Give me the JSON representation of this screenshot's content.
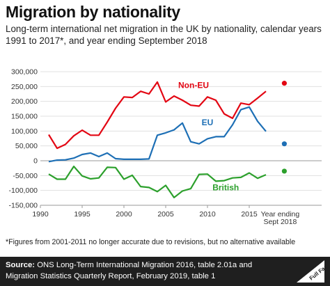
{
  "header": {
    "title": "Migration by nationality",
    "subtitle": "Long-term international net migration in the UK by nationality, calendar years 1991 to 2017*, and year ending September 2018"
  },
  "footnote": "*Figures from 2001-2011 no longer accurate due to revisions, but no alternative available",
  "source": {
    "label": "Source:",
    "text": "ONS Long-Term International Migration 2016, table 2.01a and Migration Statistics Quarterly Report, February 2019, table 1"
  },
  "logo": {
    "text": "Full Fact"
  },
  "colors": {
    "non_eu": "#e30613",
    "eu": "#1d6fb5",
    "british": "#2ca02c",
    "grid": "#e0e0e0",
    "source_bg": "#1f1f1f"
  },
  "chart_data": {
    "type": "line",
    "title": "Migration by nationality",
    "x": [
      1991,
      1992,
      1993,
      1994,
      1995,
      1996,
      1997,
      1998,
      1999,
      2000,
      2001,
      2002,
      2003,
      2004,
      2005,
      2006,
      2007,
      2008,
      2009,
      2010,
      2011,
      2012,
      2013,
      2014,
      2015,
      2016,
      2017
    ],
    "series": [
      {
        "name": "Non-EU",
        "color": "#e30613",
        "values": [
          88000,
          42000,
          55000,
          84000,
          103000,
          86000,
          86000,
          130000,
          177000,
          215000,
          213000,
          234000,
          225000,
          265000,
          198000,
          218000,
          204000,
          187000,
          184000,
          215000,
          204000,
          158000,
          143000,
          194000,
          189000,
          211000,
          234000
        ],
        "end_point": {
          "label": "Year ending Sept 2018",
          "value": 261000
        }
      },
      {
        "name": "EU",
        "color": "#1d6fb5",
        "values": [
          -3000,
          2000,
          3000,
          9000,
          21000,
          26000,
          14000,
          26000,
          7000,
          5000,
          5000,
          5000,
          6000,
          86000,
          94000,
          104000,
          127000,
          64000,
          57000,
          74000,
          81000,
          81000,
          121000,
          172000,
          181000,
          133000,
          99000
        ],
        "end_point": {
          "label": "Year ending Sept 2018",
          "value": 57000
        }
      },
      {
        "name": "British",
        "color": "#2ca02c",
        "values": [
          -45000,
          -62000,
          -62000,
          -19000,
          -51000,
          -61000,
          -58000,
          -22000,
          -23000,
          -62000,
          -49000,
          -87000,
          -90000,
          -104000,
          -83000,
          -124000,
          -102000,
          -94000,
          -46000,
          -45000,
          -69000,
          -67000,
          -58000,
          -56000,
          -41000,
          -59000,
          -47000
        ],
        "end_point": {
          "label": "Year ending Sept 2018",
          "value": -35000
        }
      }
    ],
    "x_ticks": [
      1990,
      1995,
      2000,
      2005,
      2010,
      2015
    ],
    "x_tick_labels": [
      "1990",
      "1995",
      "2000",
      "2005",
      "2010",
      "2015"
    ],
    "extra_x_label": [
      "Year ending",
      "Sept 2018"
    ],
    "y_ticks": [
      300000,
      250000,
      200000,
      150000,
      100000,
      50000,
      0,
      -50000,
      -100000,
      -150000
    ],
    "y_tick_labels": [
      "300,000",
      "250,000",
      "200,000",
      "150,000",
      "100,000",
      "50,000",
      "0",
      "-50,000",
      "-100,000",
      "-150,000"
    ],
    "xlim": [
      1990,
      2019.5
    ],
    "ylim": [
      -150000,
      300000
    ],
    "grid": "horizontal"
  }
}
